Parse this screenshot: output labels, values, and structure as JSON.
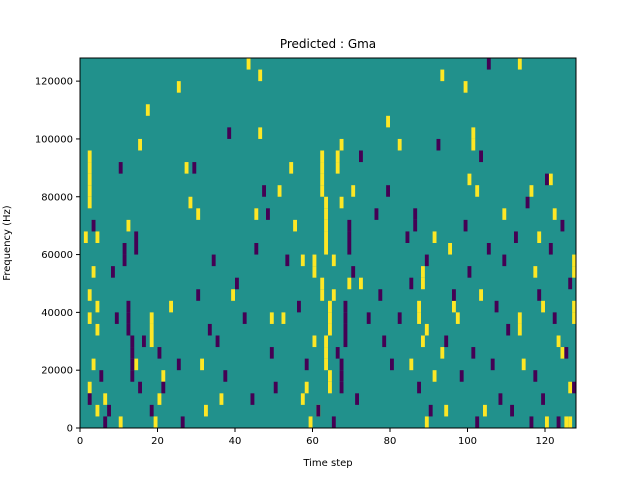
{
  "chart_data": {
    "type": "heatmap",
    "title": "Predicted : Gma",
    "xlabel": "Time step",
    "ylabel": "Frequency (Hz)",
    "xlim": [
      0,
      128
    ],
    "ylim": [
      0,
      128000
    ],
    "xticks": [
      0,
      20,
      40,
      60,
      80,
      100,
      120
    ],
    "yticks": [
      0,
      20000,
      40000,
      60000,
      80000,
      100000,
      120000
    ],
    "xtick_labels": [
      "0",
      "20",
      "40",
      "60",
      "80",
      "100",
      "120"
    ],
    "ytick_labels": [
      "0",
      "20000",
      "40000",
      "60000",
      "80000",
      "100000",
      "120000"
    ],
    "bin_height_hz": 4000,
    "grid": false,
    "colors": {
      "background": "#21918c",
      "high": "#fde725",
      "low": "#440154"
    },
    "legend": "none",
    "cells_high": [
      [
        2,
        19
      ],
      [
        2,
        20
      ],
      [
        2,
        21
      ],
      [
        2,
        22
      ],
      [
        2,
        23
      ],
      [
        1,
        16
      ],
      [
        3,
        13
      ],
      [
        2,
        11
      ],
      [
        2,
        9
      ],
      [
        3,
        5
      ],
      [
        2,
        3
      ],
      [
        4,
        16
      ],
      [
        4,
        10
      ],
      [
        4,
        8
      ],
      [
        4,
        1
      ],
      [
        6,
        2
      ],
      [
        10,
        0
      ],
      [
        12,
        17
      ],
      [
        14,
        5
      ],
      [
        15,
        24
      ],
      [
        17,
        27
      ],
      [
        18,
        7
      ],
      [
        18,
        8
      ],
      [
        18,
        9
      ],
      [
        19,
        0
      ],
      [
        20,
        2
      ],
      [
        21,
        4
      ],
      [
        23,
        10
      ],
      [
        25,
        29
      ],
      [
        27,
        22
      ],
      [
        28,
        19
      ],
      [
        30,
        18
      ],
      [
        31,
        5
      ],
      [
        32,
        1
      ],
      [
        36,
        2
      ],
      [
        39,
        11
      ],
      [
        43,
        31
      ],
      [
        45,
        18
      ],
      [
        46,
        25
      ],
      [
        46,
        30
      ],
      [
        49,
        9
      ],
      [
        51,
        20
      ],
      [
        52,
        9
      ],
      [
        54,
        22
      ],
      [
        55,
        17
      ],
      [
        57,
        14
      ],
      [
        57,
        2
      ],
      [
        58,
        3
      ],
      [
        59,
        0
      ],
      [
        60,
        14
      ],
      [
        60,
        13
      ],
      [
        60,
        7
      ],
      [
        61,
        1
      ],
      [
        62,
        20
      ],
      [
        62,
        21
      ],
      [
        62,
        22
      ],
      [
        62,
        23
      ],
      [
        63,
        15
      ],
      [
        63,
        16
      ],
      [
        63,
        17
      ],
      [
        63,
        18
      ],
      [
        63,
        19
      ],
      [
        62,
        11
      ],
      [
        62,
        12
      ],
      [
        63,
        5
      ],
      [
        63,
        6
      ],
      [
        63,
        7
      ],
      [
        64,
        3
      ],
      [
        64,
        4
      ],
      [
        64,
        8
      ],
      [
        64,
        9
      ],
      [
        64,
        10
      ],
      [
        65,
        14
      ],
      [
        65,
        11
      ],
      [
        66,
        22
      ],
      [
        66,
        23
      ],
      [
        67,
        19
      ],
      [
        67,
        24
      ],
      [
        69,
        12
      ],
      [
        70,
        20
      ],
      [
        72,
        12
      ],
      [
        79,
        26
      ],
      [
        82,
        24
      ],
      [
        85,
        5
      ],
      [
        87,
        9
      ],
      [
        87,
        10
      ],
      [
        88,
        7
      ],
      [
        88,
        12
      ],
      [
        88,
        13
      ],
      [
        89,
        8
      ],
      [
        89,
        0
      ],
      [
        91,
        16
      ],
      [
        91,
        4
      ],
      [
        93,
        6
      ],
      [
        93,
        30
      ],
      [
        94,
        1
      ],
      [
        95,
        15
      ],
      [
        96,
        10
      ],
      [
        97,
        9
      ],
      [
        99,
        29
      ],
      [
        100,
        21
      ],
      [
        101,
        24
      ],
      [
        101,
        25
      ],
      [
        102,
        20
      ],
      [
        103,
        11
      ],
      [
        104,
        1
      ],
      [
        109,
        18
      ],
      [
        113,
        8
      ],
      [
        113,
        9
      ],
      [
        113,
        31
      ],
      [
        114,
        5
      ],
      [
        116,
        20
      ],
      [
        117,
        13
      ],
      [
        118,
        16
      ],
      [
        119,
        10
      ],
      [
        120,
        0
      ],
      [
        121,
        21
      ],
      [
        122,
        18
      ],
      [
        123,
        7
      ],
      [
        124,
        6
      ],
      [
        125,
        0
      ],
      [
        126,
        0
      ],
      [
        126,
        3
      ],
      [
        127,
        9
      ],
      [
        127,
        10
      ],
      [
        127,
        13
      ],
      [
        127,
        14
      ]
    ],
    "cells_low": [
      [
        2,
        2
      ],
      [
        3,
        17
      ],
      [
        5,
        4
      ],
      [
        6,
        0
      ],
      [
        7,
        1
      ],
      [
        8,
        13
      ],
      [
        9,
        9
      ],
      [
        10,
        22
      ],
      [
        11,
        14
      ],
      [
        11,
        15
      ],
      [
        12,
        8
      ],
      [
        12,
        9
      ],
      [
        12,
        10
      ],
      [
        13,
        4
      ],
      [
        13,
        5
      ],
      [
        13,
        6
      ],
      [
        13,
        7
      ],
      [
        14,
        15
      ],
      [
        14,
        16
      ],
      [
        15,
        3
      ],
      [
        16,
        7
      ],
      [
        18,
        1
      ],
      [
        20,
        6
      ],
      [
        21,
        3
      ],
      [
        25,
        5
      ],
      [
        26,
        0
      ],
      [
        29,
        22
      ],
      [
        30,
        11
      ],
      [
        33,
        8
      ],
      [
        34,
        14
      ],
      [
        35,
        7
      ],
      [
        37,
        4
      ],
      [
        38,
        25
      ],
      [
        40,
        12
      ],
      [
        42,
        9
      ],
      [
        44,
        2
      ],
      [
        45,
        15
      ],
      [
        47,
        20
      ],
      [
        48,
        18
      ],
      [
        49,
        6
      ],
      [
        50,
        3
      ],
      [
        53,
        14
      ],
      [
        56,
        10
      ],
      [
        58,
        5
      ],
      [
        61,
        1
      ],
      [
        65,
        0
      ],
      [
        66,
        6
      ],
      [
        67,
        3
      ],
      [
        67,
        4
      ],
      [
        67,
        5
      ],
      [
        68,
        7
      ],
      [
        68,
        8
      ],
      [
        68,
        9
      ],
      [
        68,
        10
      ],
      [
        69,
        15
      ],
      [
        69,
        16
      ],
      [
        69,
        17
      ],
      [
        70,
        13
      ],
      [
        71,
        2
      ],
      [
        72,
        23
      ],
      [
        74,
        9
      ],
      [
        76,
        18
      ],
      [
        77,
        11
      ],
      [
        78,
        7
      ],
      [
        79,
        20
      ],
      [
        80,
        5
      ],
      [
        82,
        9
      ],
      [
        84,
        16
      ],
      [
        85,
        12
      ],
      [
        86,
        17
      ],
      [
        86,
        18
      ],
      [
        87,
        3
      ],
      [
        89,
        14
      ],
      [
        90,
        1
      ],
      [
        92,
        24
      ],
      [
        94,
        7
      ],
      [
        96,
        11
      ],
      [
        98,
        4
      ],
      [
        99,
        17
      ],
      [
        100,
        13
      ],
      [
        101,
        6
      ],
      [
        102,
        0
      ],
      [
        103,
        23
      ],
      [
        105,
        15
      ],
      [
        105,
        31
      ],
      [
        106,
        5
      ],
      [
        107,
        10
      ],
      [
        108,
        2
      ],
      [
        109,
        14
      ],
      [
        110,
        8
      ],
      [
        111,
        1
      ],
      [
        112,
        16
      ],
      [
        115,
        19
      ],
      [
        116,
        0
      ],
      [
        117,
        4
      ],
      [
        118,
        11
      ],
      [
        119,
        2
      ],
      [
        120,
        21
      ],
      [
        121,
        15
      ],
      [
        122,
        9
      ],
      [
        123,
        0
      ],
      [
        124,
        17
      ],
      [
        125,
        6
      ],
      [
        126,
        12
      ],
      [
        127,
        3
      ]
    ]
  }
}
